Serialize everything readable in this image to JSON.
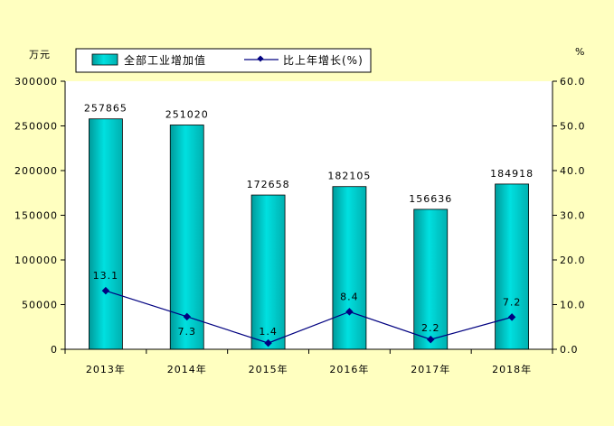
{
  "chart_data": {
    "type": "bar",
    "categories": [
      "2013年",
      "2014年",
      "2015年",
      "2016年",
      "2017年",
      "2018年"
    ],
    "series": [
      {
        "name": "全部工业增加值",
        "type": "bar",
        "axis": "left",
        "values": [
          257865,
          251020,
          172658,
          182105,
          156636,
          184918
        ],
        "labels": [
          "257865",
          "251020",
          "172658",
          "182105",
          "156636",
          "184918"
        ],
        "color": "#00c8c8"
      },
      {
        "name": "比上年增长(%)",
        "type": "line",
        "axis": "right",
        "values": [
          13.1,
          7.3,
          1.4,
          8.4,
          2.2,
          7.2
        ],
        "labels": [
          "13.1",
          "7.3",
          "1.4",
          "8.4",
          "2.2",
          "7.2"
        ],
        "color": "#000080"
      }
    ],
    "y_left": {
      "label": "万元",
      "ylim": [
        0,
        300000
      ],
      "ticks": [
        0,
        50000,
        100000,
        150000,
        200000,
        250000,
        300000
      ],
      "tick_labels": [
        "0",
        "50000",
        "100000",
        "150000",
        "200000",
        "250000",
        "300000"
      ]
    },
    "y_right": {
      "label": "%",
      "ylim": [
        0,
        60
      ],
      "ticks": [
        0,
        10,
        20,
        30,
        40,
        50,
        60
      ],
      "tick_labels": [
        "0.0",
        "10.0",
        "20.0",
        "30.0",
        "40.0",
        "50.0",
        "60.0"
      ]
    },
    "legend_position": "top-center",
    "grid": false
  }
}
